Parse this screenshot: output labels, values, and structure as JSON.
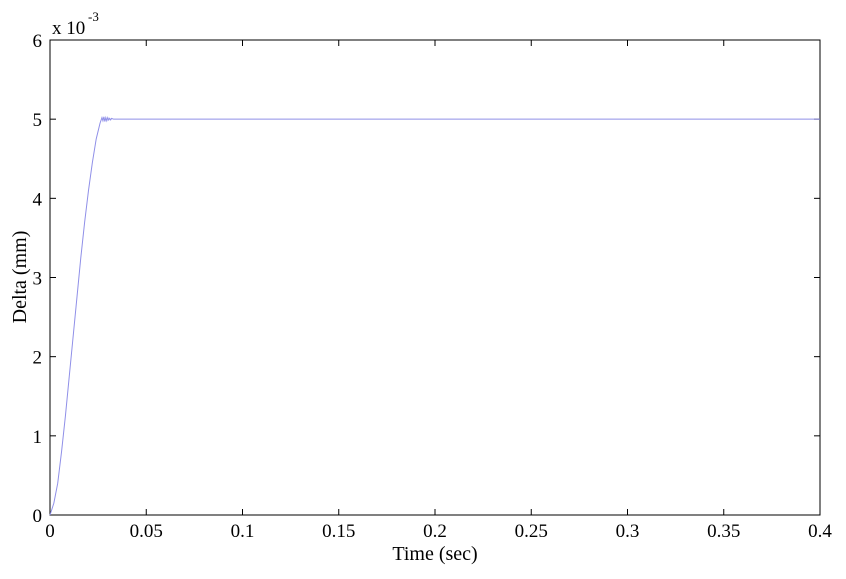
{
  "chart_data": {
    "type": "line",
    "title": "",
    "xlabel": "Time (sec)",
    "ylabel": "Delta (mm)",
    "y_multiplier_label": "x 10",
    "y_multiplier_exponent": "-3",
    "xlim": [
      0,
      0.4
    ],
    "ylim": [
      0,
      6
    ],
    "x_ticks": [
      0,
      0.05,
      0.1,
      0.15,
      0.2,
      0.25,
      0.3,
      0.35,
      0.4
    ],
    "x_tick_labels": [
      "0",
      "0.05",
      "0.1",
      "0.15",
      "0.2",
      "0.25",
      "0.3",
      "0.35",
      "0.4"
    ],
    "y_ticks": [
      0,
      1,
      2,
      3,
      4,
      5,
      6
    ],
    "y_tick_labels": [
      "0",
      "1",
      "2",
      "3",
      "4",
      "5",
      "6"
    ],
    "grid": false,
    "line_color": "#8f8fe8",
    "series": [
      {
        "x": [
          0,
          0.002,
          0.004,
          0.006,
          0.008,
          0.01,
          0.012,
          0.014,
          0.016,
          0.018,
          0.02,
          0.022,
          0.024,
          0.026,
          0.027,
          0.0275,
          0.028,
          0.0285,
          0.029,
          0.0295,
          0.03,
          0.0305,
          0.031,
          0.0315,
          0.032,
          0.033,
          0.034,
          0.04,
          0.1,
          0.2,
          0.3,
          0.4
        ],
        "y": [
          0,
          0.15,
          0.4,
          0.8,
          1.25,
          1.75,
          2.25,
          2.75,
          3.25,
          3.7,
          4.1,
          4.45,
          4.75,
          4.95,
          5.02,
          4.98,
          5.03,
          4.97,
          5.02,
          4.98,
          5.02,
          4.99,
          5.01,
          4.99,
          5.01,
          5.0,
          5.0,
          5.0,
          5.0,
          5.0,
          5.0,
          5.0
        ]
      }
    ]
  }
}
